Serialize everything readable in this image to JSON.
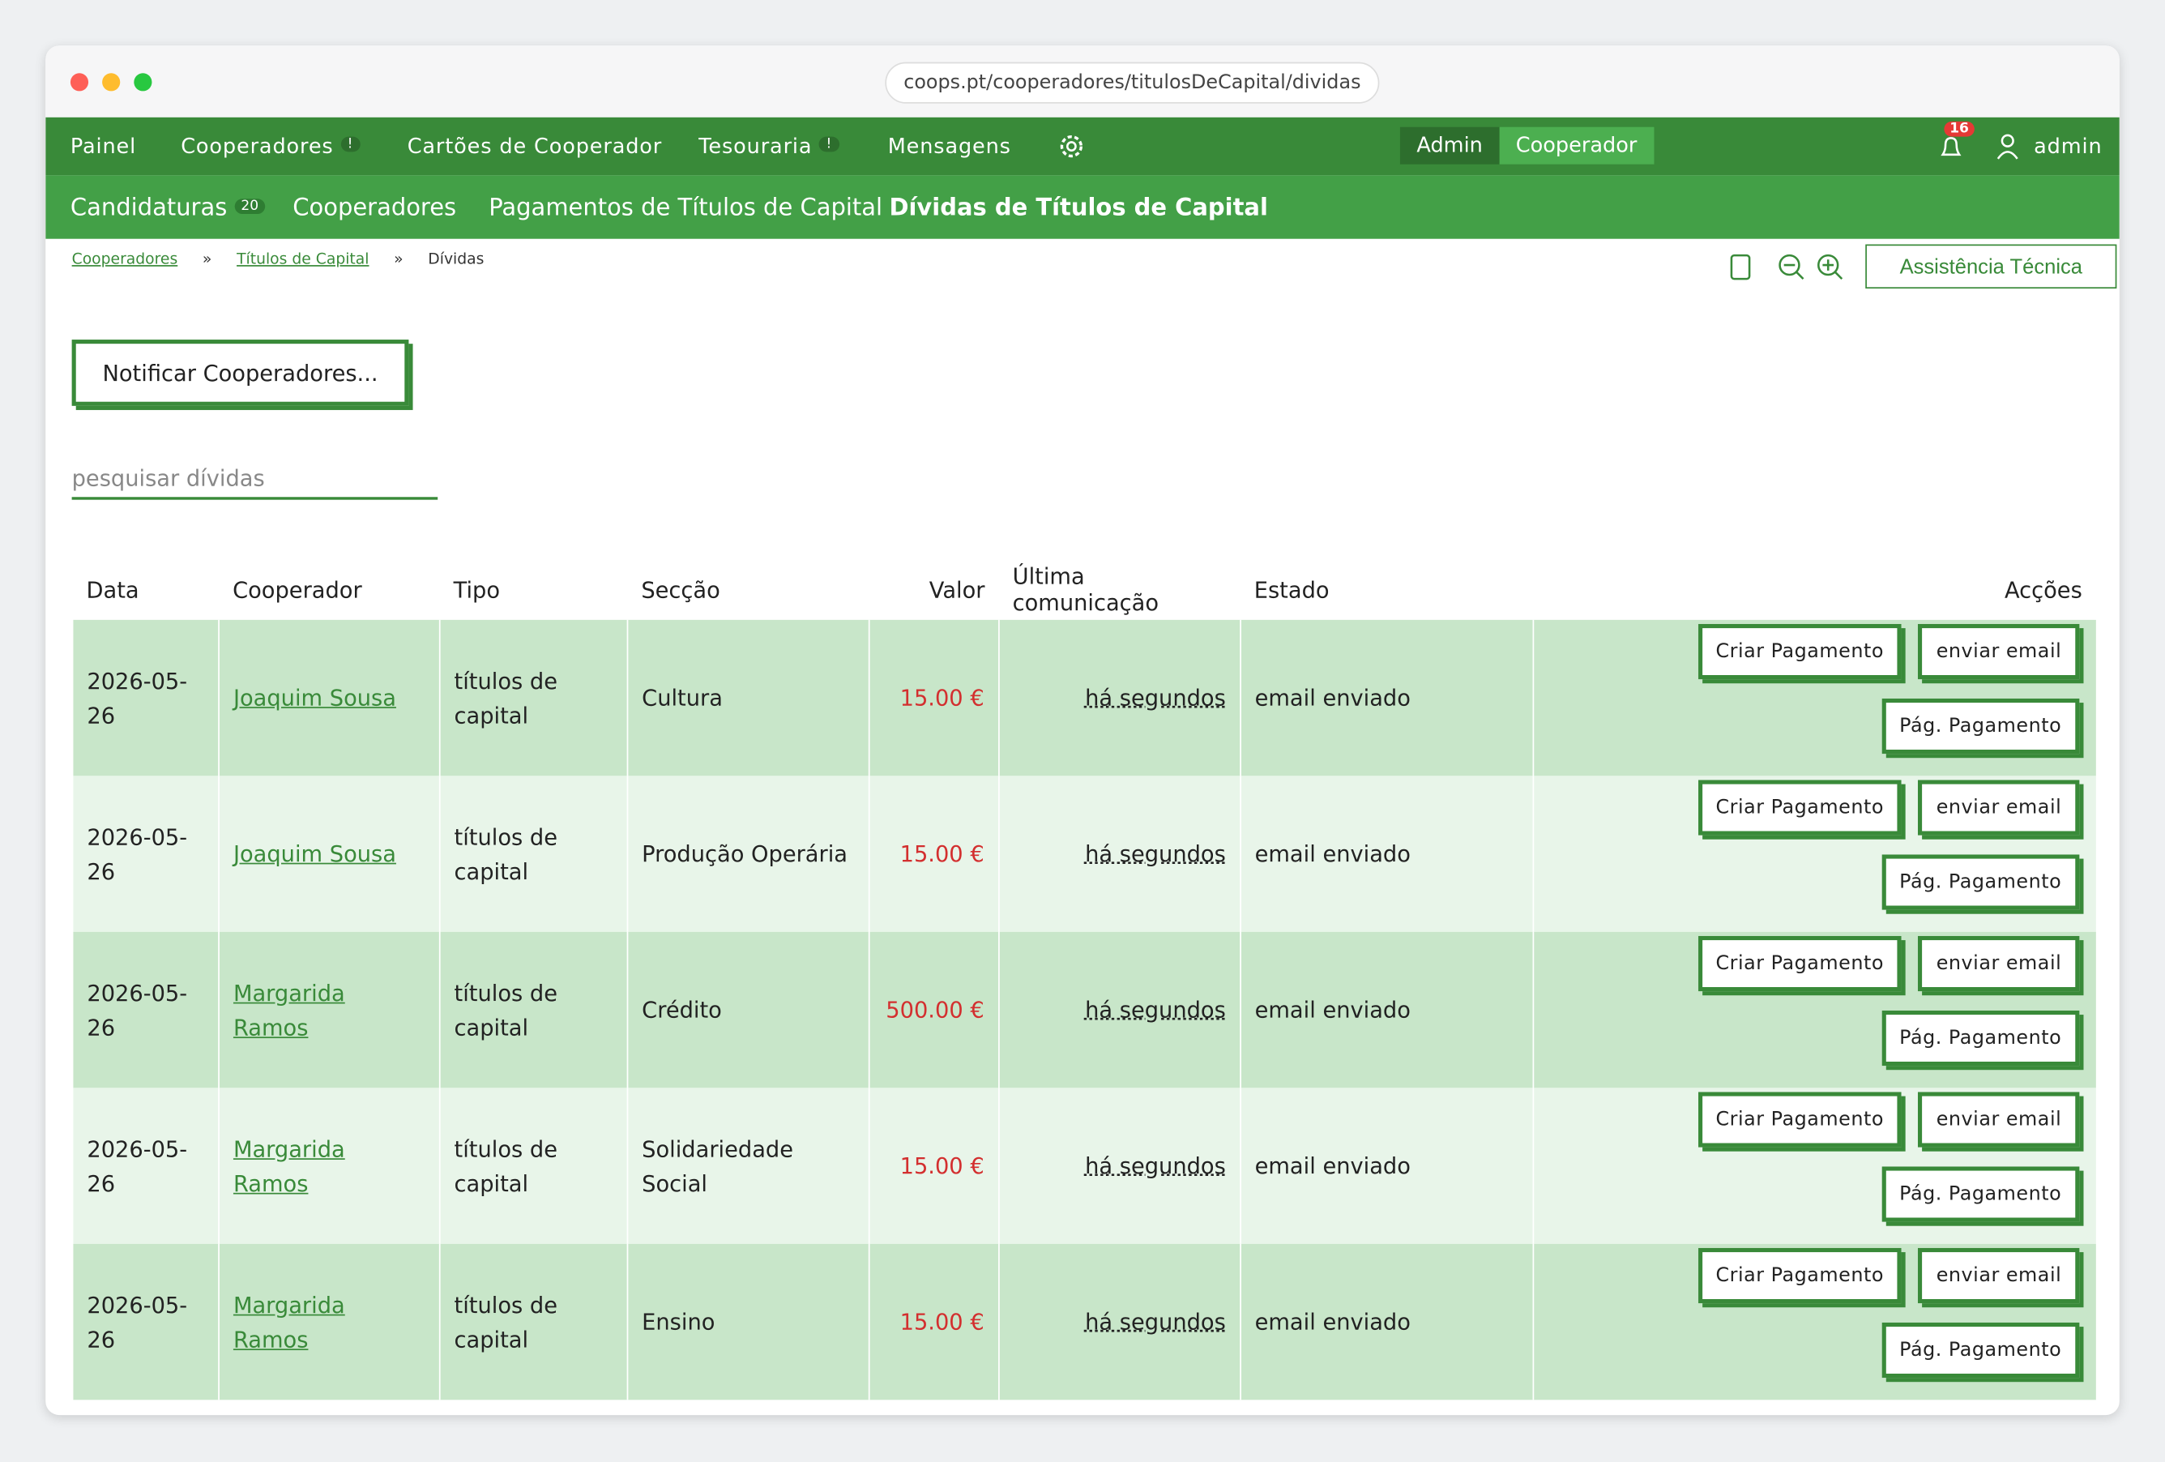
{
  "browser": {
    "url": "coops.pt/cooperadores/titulosDeCapital/dividas"
  },
  "nav": {
    "items": [
      {
        "label": "Painel"
      },
      {
        "label": "Cooperadores",
        "badge": "!"
      },
      {
        "label": "Cartões de Cooperador"
      },
      {
        "label": "Tesouraria",
        "badge": "!"
      },
      {
        "label": "Mensagens"
      }
    ],
    "roles": [
      "Admin",
      "Cooperador"
    ],
    "notifications": "16",
    "user": "admin"
  },
  "subnav": {
    "items": [
      {
        "label": "Candidaturas",
        "badge": "20"
      },
      {
        "label": "Cooperadores"
      },
      {
        "label": "Pagamentos de Títulos de Capital"
      },
      {
        "label": "Dívidas de Títulos de Capital"
      }
    ]
  },
  "breadcrumb": {
    "items": [
      "Cooperadores",
      "Títulos de Capital",
      "Dívidas"
    ],
    "separator": "»"
  },
  "support_button": "Assistência Técnica",
  "notify_button": "Notificar Cooperadores...",
  "search": {
    "placeholder": "pesquisar dívidas"
  },
  "table": {
    "headers": [
      "Data",
      "Cooperador",
      "Tipo",
      "Secção",
      "Valor",
      "Última comunicação",
      "Estado",
      "Acções"
    ],
    "actions": [
      "Criar Pagamento",
      "enviar email",
      "Pág. Pagamento"
    ],
    "rows": [
      [
        "2026-05-26",
        "Joaquim Sousa",
        "títulos de capital",
        "Cultura",
        "15.00 €",
        "há segundos",
        "email enviado"
      ],
      [
        "2026-05-26",
        "Joaquim Sousa",
        "títulos de capital",
        "Produção Operária",
        "15.00 €",
        "há segundos",
        "email enviado"
      ],
      [
        "2026-05-26",
        "Margarida Ramos",
        "títulos de capital",
        "Crédito",
        "500.00 €",
        "há segundos",
        "email enviado"
      ],
      [
        "2026-05-26",
        "Margarida Ramos",
        "títulos de capital",
        "Solidariedade Social",
        "15.00 €",
        "há segundos",
        "email enviado"
      ],
      [
        "2026-05-26",
        "Margarida Ramos",
        "títulos de capital",
        "Ensino",
        "15.00 €",
        "há segundos",
        "email enviado"
      ]
    ]
  }
}
